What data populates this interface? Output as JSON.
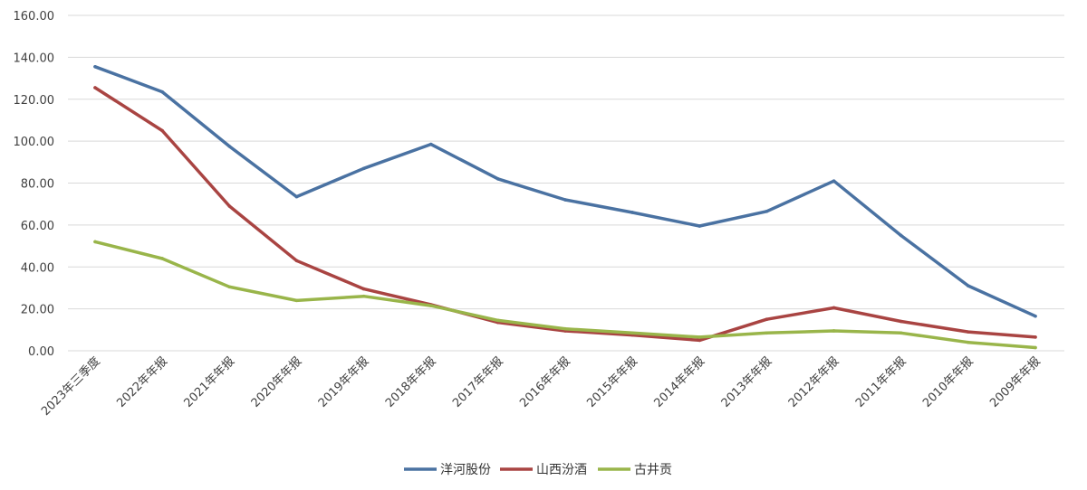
{
  "chart_data": {
    "type": "line",
    "title": "",
    "xlabel": "",
    "ylabel": "",
    "ylim": [
      0,
      160
    ],
    "yticks": [
      "0.00",
      "20.00",
      "40.00",
      "60.00",
      "80.00",
      "100.00",
      "120.00",
      "140.00",
      "160.00"
    ],
    "grid": true,
    "legend_position": "bottom-center",
    "categories": [
      "2023年三季度",
      "2022年年报",
      "2021年年报",
      "2020年年报",
      "2019年年报",
      "2018年年报",
      "2017年年报",
      "2016年年报",
      "2015年年报",
      "2014年年报",
      "2013年年报",
      "2012年年报",
      "2011年年报",
      "2010年年报",
      "2009年年报"
    ],
    "series": [
      {
        "name": "洋河股份",
        "color": "#4a72a2",
        "values": [
          135.5,
          123.5,
          97.5,
          73.5,
          87,
          98.5,
          82,
          72,
          66,
          59.5,
          66.5,
          81,
          55,
          31,
          16.5
        ]
      },
      {
        "name": "山西汾酒",
        "color": "#a94442",
        "values": [
          125.5,
          105,
          69,
          43,
          29.5,
          22,
          13.5,
          9.5,
          7.5,
          5,
          15,
          20.5,
          14,
          9,
          6.5
        ]
      },
      {
        "name": "古井贡",
        "color": "#99b54a",
        "values": [
          52,
          44,
          30.5,
          24,
          26,
          21.5,
          14.5,
          10.5,
          8.5,
          6.5,
          8.5,
          9.5,
          8.5,
          4,
          1.5
        ]
      }
    ]
  }
}
